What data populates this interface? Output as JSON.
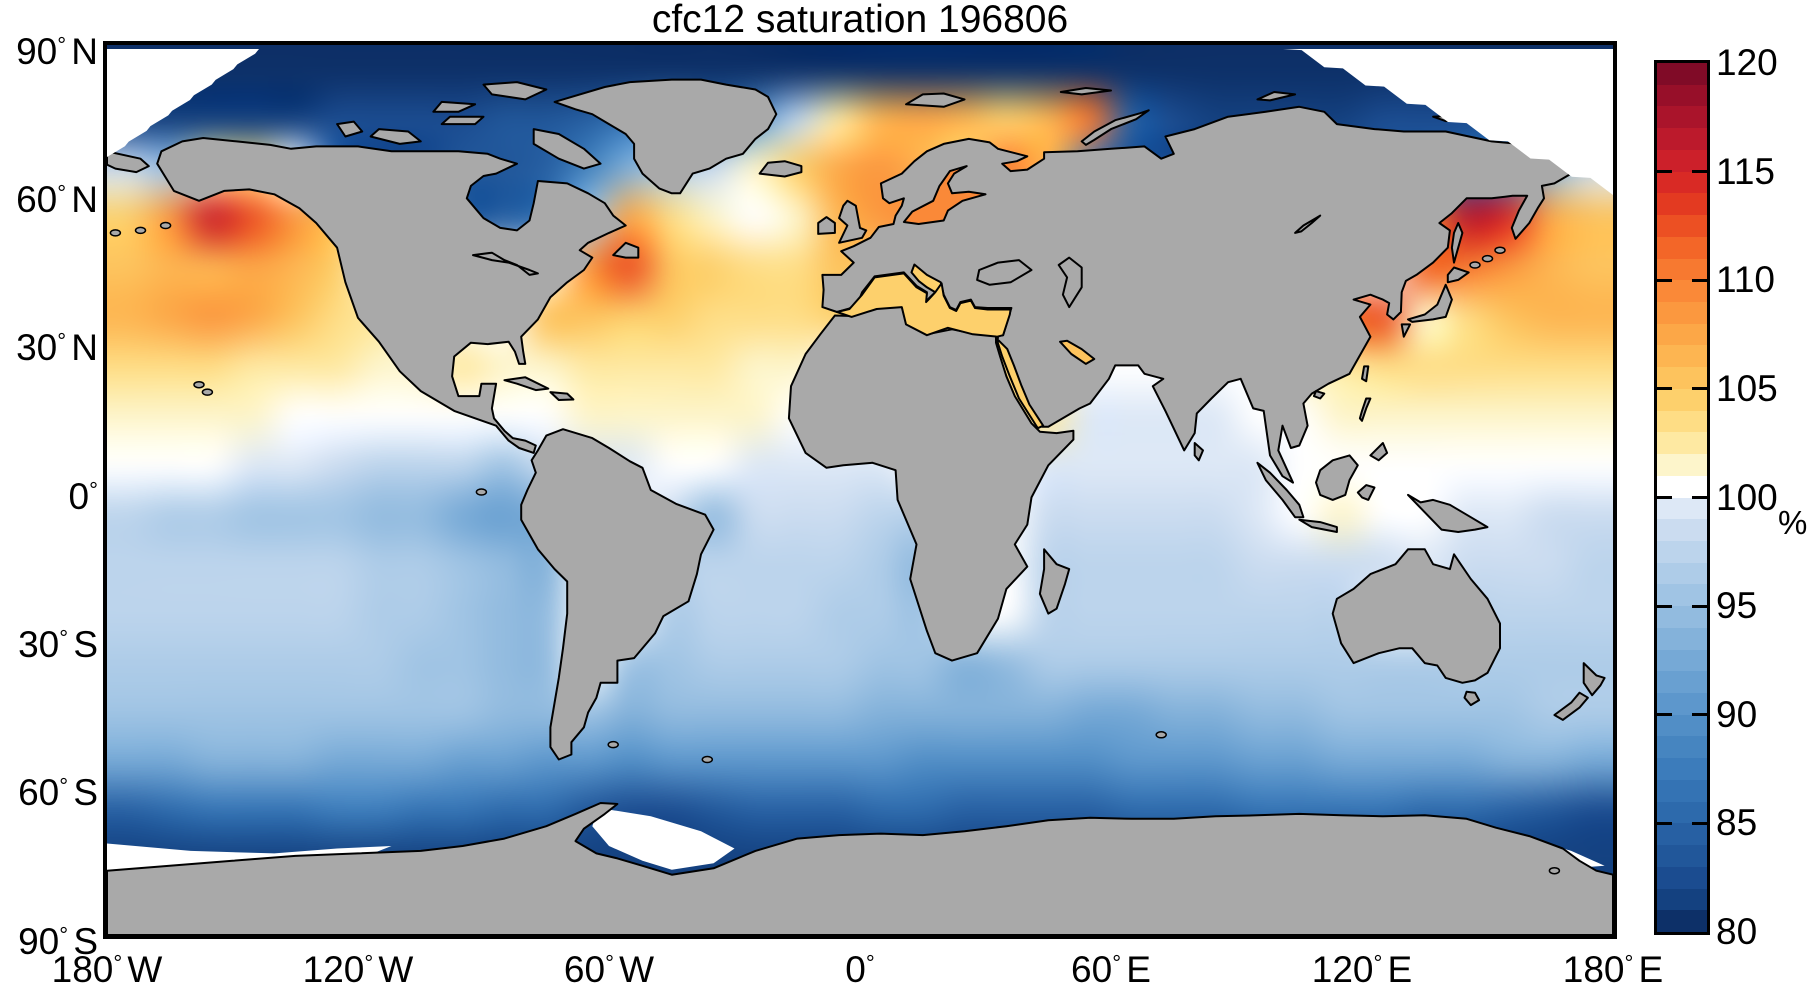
{
  "title": "cfc12 saturation 196806",
  "axes": {
    "lat_ticks": [
      {
        "value": 90,
        "num": "90",
        "dir": "N"
      },
      {
        "value": 60,
        "num": "60",
        "dir": "N"
      },
      {
        "value": 30,
        "num": "30",
        "dir": "N"
      },
      {
        "value": 0,
        "num": "0",
        "dir": ""
      },
      {
        "value": -30,
        "num": "30",
        "dir": "S"
      },
      {
        "value": -60,
        "num": "60",
        "dir": "S"
      },
      {
        "value": -90,
        "num": "90",
        "dir": "S"
      }
    ],
    "lon_ticks": [
      {
        "value": -180,
        "num": "180",
        "dir": "W"
      },
      {
        "value": -120,
        "num": "120",
        "dir": "W"
      },
      {
        "value": -60,
        "num": "60",
        "dir": "W"
      },
      {
        "value": 0,
        "num": "0",
        "dir": ""
      },
      {
        "value": 60,
        "num": "60",
        "dir": "E"
      },
      {
        "value": 120,
        "num": "120",
        "dir": "E"
      },
      {
        "value": 180,
        "num": "180",
        "dir": "E"
      }
    ]
  },
  "colorbar": {
    "unit": "%",
    "min": 80,
    "max": 120,
    "band_step": 1,
    "tick_values": [
      120,
      115,
      110,
      105,
      100,
      95,
      90,
      85,
      80
    ],
    "tick_labels": [
      "120",
      "115",
      "110",
      "105",
      "100",
      "95",
      "90",
      "85",
      "80"
    ],
    "dash_tick_values": [
      115,
      110,
      105,
      100,
      95,
      90,
      85
    ],
    "palette_low_to_high": [
      "#0d3068",
      "#144180",
      "#1b4c90",
      "#21579a",
      "#2760a3",
      "#2d6aac",
      "#3473b4",
      "#3c7cbb",
      "#4685c0",
      "#518ec6",
      "#5d97cc",
      "#69a0d1",
      "#76a9d6",
      "#84b2da",
      "#92bbdf",
      "#a0c4e4",
      "#aecce8",
      "#bcd4ec",
      "#cbdcf0",
      "#dde8f6",
      "#ffffff",
      "#fdf5cb",
      "#fee9a2",
      "#fedd85",
      "#fdd06c",
      "#fdc35d",
      "#fdb551",
      "#fca747",
      "#fb983f",
      "#fa8938",
      "#f77930",
      "#f36628",
      "#ec5023",
      "#e33a21",
      "#d92a25",
      "#cc202a",
      "#bc1a2c",
      "#aa142b",
      "#970f29",
      "#800b27"
    ]
  },
  "chart_data": {
    "type": "heatmap",
    "field_name": "cfc12 saturation",
    "units": "%",
    "title": "cfc12 saturation 196806",
    "value_range": [
      80,
      120
    ],
    "lon_range": [
      -180,
      180
    ],
    "lat_range": [
      -90,
      90
    ],
    "land_color": "#a9a9a9",
    "coast_color": "#000000",
    "no_data_color": "#ffffff",
    "lon_cell_centers": [
      -175,
      -165,
      -155,
      -145,
      -135,
      -125,
      -115,
      -105,
      -95,
      -85,
      -75,
      -65,
      -55,
      -45,
      -35,
      -25,
      -15,
      -5,
      5,
      15,
      25,
      35,
      45,
      55,
      65,
      75,
      85,
      95,
      105,
      115,
      125,
      135,
      145,
      155,
      165,
      175
    ],
    "lat_cell_centers": [
      85,
      75,
      65,
      55,
      45,
      35,
      25,
      15,
      5,
      -5,
      -15,
      -25,
      -35,
      -45,
      -55,
      -65,
      -75,
      -85
    ],
    "values": [
      [
        80.5,
        80.5,
        80.5,
        80.5,
        80.5,
        80.5,
        80.5,
        80.5,
        80.5,
        80.5,
        80.5,
        80.5,
        80.5,
        80.5,
        80.5,
        80.5,
        80.5,
        80.5,
        80.5,
        80.5,
        80.5,
        80.5,
        80.5,
        80.5,
        80.5,
        80.5,
        80.5,
        80.5,
        80.5,
        80.5,
        80.5,
        80.5,
        80.5,
        80.5,
        80.5,
        80.5
      ],
      [
        81,
        81,
        81,
        81.5,
        81.5,
        82,
        82,
        82,
        82.5,
        83,
        83.5,
        84,
        86,
        88,
        86,
        90,
        97,
        102,
        106,
        107,
        106,
        104,
        106,
        110,
        84,
        82,
        81,
        81,
        81,
        81.5,
        82,
        82,
        82,
        83,
        82,
        81.5
      ],
      [
        98,
        95,
        102,
        103,
        100,
        84,
        82.5,
        82.5,
        83,
        83.5,
        84,
        88,
        93,
        96,
        98,
        101,
        104,
        107,
        108,
        106,
        104,
        110,
        106,
        88,
        83,
        82,
        81.5,
        81.5,
        82,
        83,
        84,
        84.5,
        85,
        87,
        93,
        98
      ],
      [
        104,
        108,
        115,
        112,
        108,
        105,
        100,
        100,
        84,
        84,
        86,
        95,
        107,
        103,
        101,
        100,
        101,
        106,
        108,
        109,
        110,
        105,
        100,
        100,
        100,
        100,
        100,
        100,
        100,
        100,
        100,
        108,
        116,
        114,
        107,
        105
      ],
      [
        105,
        106,
        106,
        107,
        106,
        104,
        100,
        100,
        100,
        100,
        100,
        108,
        112,
        105,
        104,
        103,
        103,
        105,
        104,
        104,
        103,
        100,
        100,
        100,
        100,
        100,
        100,
        100,
        100,
        100,
        100,
        111,
        110,
        108,
        106,
        105
      ],
      [
        106,
        107,
        108,
        107,
        105,
        103,
        102,
        100,
        100,
        100,
        105,
        105,
        104,
        104,
        103,
        103,
        103,
        104,
        105,
        105,
        103,
        98,
        100,
        100,
        100,
        100,
        100,
        100,
        100,
        110,
        112,
        101,
        103,
        105,
        106,
        106
      ],
      [
        103,
        103,
        103,
        102,
        102,
        102,
        101,
        101,
        102,
        101,
        101,
        102,
        102,
        102,
        102,
        101,
        101,
        100,
        100,
        100,
        100,
        104,
        100,
        100,
        100,
        100,
        100,
        100,
        101,
        102,
        103,
        103,
        103,
        103,
        103,
        103
      ],
      [
        101,
        101,
        101,
        101,
        100.5,
        100.5,
        100.5,
        100,
        100.5,
        100.5,
        100.5,
        101,
        101,
        101,
        101,
        101,
        100,
        100,
        100,
        100,
        100,
        103,
        102,
        99,
        99,
        99.5,
        99.5,
        100,
        100.5,
        101,
        101,
        101,
        101,
        101,
        101,
        101
      ],
      [
        100,
        100,
        100,
        99.5,
        99,
        98,
        97.5,
        97,
        97,
        95,
        98,
        99.5,
        99.5,
        100,
        100,
        99.5,
        99,
        99,
        99,
        100,
        100,
        100,
        99,
        99,
        99,
        99,
        99.5,
        99.5,
        100,
        100.5,
        100.5,
        100.5,
        100.5,
        100.5,
        100,
        100
      ],
      [
        97,
        96.5,
        96,
        95.5,
        95,
        95,
        94.5,
        94,
        92.5,
        91,
        93,
        100,
        100,
        98,
        94,
        98,
        98,
        98,
        97.5,
        97,
        100,
        100,
        98.5,
        98.5,
        98.5,
        98.5,
        98.5,
        99,
        100.5,
        101,
        100.5,
        100,
        99.5,
        99,
        98.5,
        98
      ],
      [
        97.5,
        97.5,
        97.5,
        97.5,
        97,
        97,
        96.5,
        96,
        95,
        94,
        93.5,
        100,
        100,
        97.5,
        97,
        97.5,
        97.5,
        97,
        96,
        94.5,
        100,
        100,
        97.5,
        97.5,
        97.5,
        97.5,
        97.5,
        98,
        98,
        98.5,
        98.5,
        99,
        98.5,
        98,
        98,
        97.5
      ],
      [
        97.5,
        97.5,
        97.5,
        97.5,
        97.5,
        97,
        96.5,
        96,
        95.5,
        94.5,
        94,
        100,
        100,
        96.5,
        97,
        97,
        97,
        96.5,
        96,
        95,
        100,
        100,
        97,
        97.5,
        97.5,
        97.5,
        97.5,
        97.5,
        97.5,
        97.5,
        100,
        100,
        97.5,
        97.5,
        97.5,
        97.5
      ],
      [
        96.5,
        96.5,
        96.5,
        96.5,
        96.5,
        96.5,
        96,
        95.5,
        95,
        94.5,
        94,
        100,
        95.5,
        95.5,
        96,
        96,
        96,
        96,
        95.5,
        95,
        93.5,
        94,
        96,
        96.5,
        96.5,
        96.5,
        96.5,
        96.5,
        96.5,
        96.5,
        96,
        96,
        96,
        96.5,
        96.5,
        96.5
      ],
      [
        95.5,
        95.5,
        95.5,
        95.5,
        95.5,
        95.5,
        95.5,
        95,
        95,
        94.5,
        94,
        95,
        93.5,
        94,
        94.5,
        94.5,
        94.5,
        94,
        93.5,
        93.5,
        93,
        93,
        93,
        92.5,
        92.5,
        93,
        93.5,
        94,
        94.5,
        95,
        95,
        95,
        95.5,
        95.5,
        96,
        96
      ],
      [
        92,
        92.5,
        93,
        93,
        93,
        92.5,
        92,
        92,
        91.5,
        91,
        90.5,
        90,
        89.5,
        90,
        90.5,
        90.5,
        90.5,
        90,
        90,
        89.5,
        89.5,
        89.5,
        89.5,
        89.5,
        90,
        90,
        90.5,
        91,
        91.5,
        92,
        92,
        92.5,
        92.5,
        93,
        93,
        92.5
      ],
      [
        84,
        85,
        86,
        86,
        86.5,
        87,
        87,
        86.5,
        86,
        85.5,
        85,
        83,
        82.5,
        82.5,
        83,
        84,
        84.5,
        84.5,
        85,
        85,
        84.5,
        84,
        84,
        84.5,
        85,
        85.5,
        85.5,
        86,
        86,
        86,
        86,
        85.5,
        85,
        84,
        83,
        82.5
      ],
      [
        81,
        81,
        81,
        81,
        81,
        81,
        81,
        81,
        81,
        81,
        81,
        81,
        81,
        81,
        81,
        81,
        81,
        81,
        81,
        81,
        81,
        81,
        81,
        81,
        81,
        81,
        81,
        81,
        81,
        81,
        81,
        81,
        81,
        81,
        81,
        81
      ],
      [
        81,
        81,
        81,
        81,
        81,
        81,
        81,
        81,
        81,
        81,
        81,
        81,
        81,
        81,
        81,
        81,
        81,
        81,
        81,
        81,
        81,
        81,
        81,
        81,
        81,
        81,
        81,
        81,
        81,
        81,
        81,
        81,
        81,
        81,
        81,
        81
      ]
    ]
  }
}
